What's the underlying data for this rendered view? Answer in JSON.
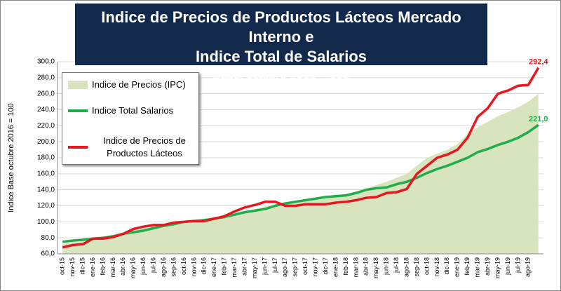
{
  "chart_data": {
    "type": "line",
    "title": [
      "Indice de Precios de Productos Lácteos Mercado Interno e",
      "Indice Total de Salarios"
    ],
    "subtitle": "- Base: octubre 2016 = 100 -",
    "y_label": "Indice Base octubre 2016 = 100",
    "categories": [
      "oct-15",
      "nov-15",
      "dic-15",
      "ene-16",
      "feb-16",
      "mar-16",
      "abr-16",
      "may-16",
      "jun-16",
      "jul-16",
      "ago-16",
      "sep-16",
      "oct-16",
      "nov-16",
      "dic-16",
      "ene-17",
      "feb-17",
      "mar-17",
      "abr-17",
      "may-17",
      "jun-17",
      "jul-17",
      "ago-17",
      "sep-17",
      "oct-17",
      "nov-17",
      "dic-17",
      "ene-18",
      "feb-18",
      "mar-18",
      "abr-18",
      "may-18",
      "jun-18",
      "jul-18",
      "ago-18",
      "sep-18",
      "oct-18",
      "nov-18",
      "dic-18",
      "ene-19",
      "feb-19",
      "mar-19",
      "abr-19",
      "may-19",
      "jun-19",
      "jul-19",
      "ago-19",
      null
    ],
    "series": [
      {
        "name": "Indice de Precios (IPC)",
        "color": "#d7e4bd",
        "kind": "area",
        "values": [
          72,
          74,
          76,
          78,
          80,
          83,
          86,
          89,
          92,
          95,
          97,
          99,
          100,
          102,
          104,
          106,
          108,
          110,
          113,
          116,
          119,
          121,
          123,
          125,
          127,
          129,
          131,
          133,
          135,
          138,
          142,
          146,
          150,
          155,
          160,
          170,
          180,
          185,
          190,
          197,
          210,
          218,
          225,
          232,
          237,
          243,
          250,
          260
        ]
      },
      {
        "name": "Indice Total Salarios",
        "color": "#1fad4b",
        "kind": "line",
        "values": [
          75,
          76.5,
          77.5,
          79,
          80,
          82,
          85,
          87,
          89,
          92,
          95,
          97,
          100,
          101,
          102,
          104,
          106,
          109,
          112,
          114,
          116,
          120,
          123,
          125,
          127,
          129,
          131,
          132,
          133,
          136,
          140,
          142,
          143,
          147,
          150,
          155,
          161,
          166,
          170,
          175,
          180,
          187,
          191,
          196,
          200,
          205,
          212,
          221
        ],
        "value_labels": [
          null,
          null,
          null,
          null,
          null,
          null,
          null,
          null,
          null,
          null,
          null,
          null,
          null,
          null,
          null,
          null,
          null,
          null,
          null,
          null,
          null,
          null,
          null,
          null,
          null,
          null,
          null,
          null,
          null,
          null,
          null,
          null,
          null,
          null,
          null,
          null,
          null,
          null,
          null,
          null,
          null,
          null,
          null,
          null,
          null,
          null,
          null,
          "221,0"
        ]
      },
      {
        "name": "Indice de Precios de Productos Lácteos",
        "color": "#e8161e",
        "kind": "line",
        "values": [
          68,
          71,
          72,
          79,
          79,
          81,
          85,
          91,
          94,
          96,
          96,
          99,
          100,
          101,
          101,
          104,
          107,
          113,
          118,
          121,
          125,
          125,
          120,
          120,
          122,
          122,
          122,
          124,
          125,
          127,
          130,
          131,
          136,
          137,
          141,
          160,
          170,
          180,
          184,
          190,
          205,
          231,
          242,
          260,
          264,
          270,
          271,
          292.4
        ],
        "value_labels": [
          null,
          null,
          null,
          null,
          null,
          null,
          null,
          null,
          null,
          null,
          null,
          null,
          null,
          null,
          null,
          null,
          null,
          null,
          null,
          null,
          null,
          null,
          null,
          null,
          null,
          null,
          null,
          null,
          null,
          null,
          null,
          null,
          null,
          null,
          null,
          null,
          null,
          null,
          null,
          null,
          null,
          null,
          null,
          null,
          null,
          null,
          null,
          "292,4"
        ]
      }
    ],
    "ylim": [
      60,
      300
    ],
    "yticks": [
      {
        "value": 60,
        "label": "60,0"
      },
      {
        "value": 80,
        "label": "80,0"
      },
      {
        "value": 100,
        "label": "100,0"
      },
      {
        "value": 120,
        "label": "120,0"
      },
      {
        "value": 140,
        "label": "140,0"
      },
      {
        "value": 160,
        "label": "160,0"
      },
      {
        "value": 180,
        "label": "180,0"
      },
      {
        "value": 200,
        "label": "200,0"
      },
      {
        "value": 220,
        "label": "220,0"
      },
      {
        "value": 240,
        "label": "240,0"
      },
      {
        "value": 260,
        "label": "260,0"
      },
      {
        "value": 280,
        "label": "280,0"
      },
      {
        "value": 300,
        "label": "300,0"
      }
    ],
    "grid": true
  }
}
